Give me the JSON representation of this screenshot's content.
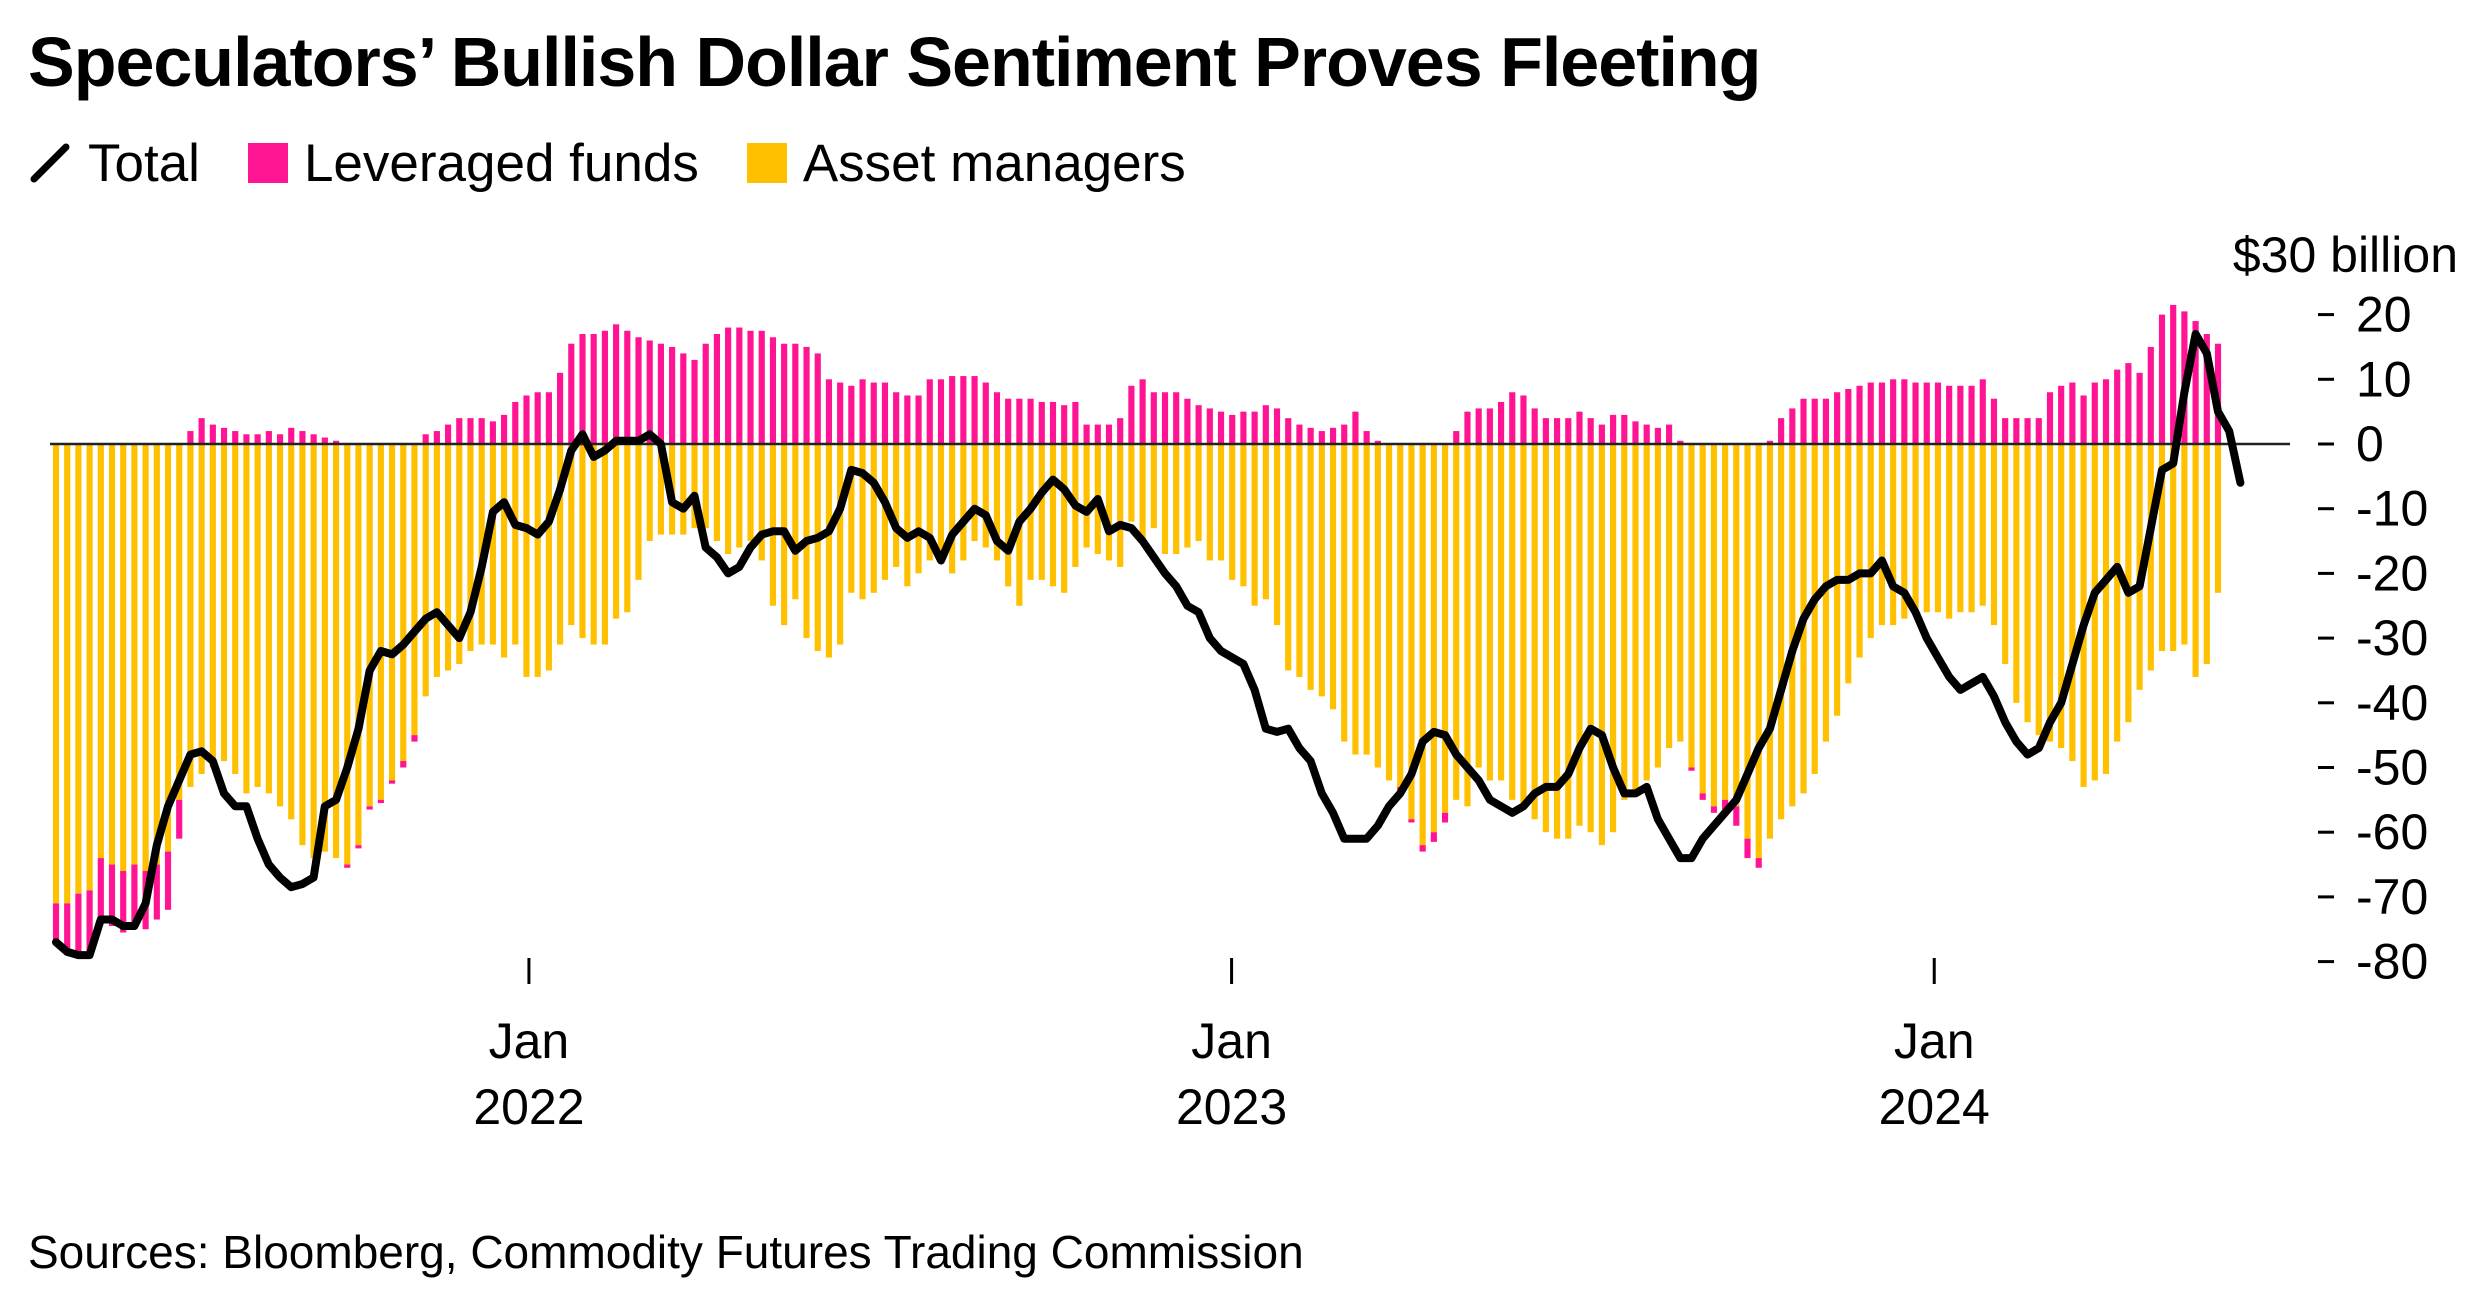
{
  "title": "Speculators’ Bullish Dollar Sentiment Proves Fleeting",
  "legend": {
    "total": "Total",
    "leveraged": "Leveraged funds",
    "asset": "Asset managers"
  },
  "colors": {
    "total": "#000000",
    "leveraged": "#ff1493",
    "asset": "#ffc000",
    "zero_line": "#222222"
  },
  "source": "Sources: Bloomberg, Commodity Futures Trading Commission",
  "chart_data": {
    "type": "bar",
    "stacked": true,
    "unit_label": "$30 billion",
    "y_ticks": [
      "20",
      "10",
      "0",
      "-10",
      "-20",
      "-30",
      "-40",
      "-50",
      "-60",
      "-70",
      "-80"
    ],
    "ylim": [
      -80,
      30
    ],
    "x_axis": {
      "start": "2021-05-04",
      "end": "2024-05-28",
      "ticks": [
        {
          "date": "2022-01-04",
          "month": "Jan",
          "year": "2022"
        },
        {
          "date": "2023-01-03",
          "month": "Jan",
          "year": "2023"
        },
        {
          "date": "2024-01-02",
          "month": "Jan",
          "year": "2024"
        }
      ]
    },
    "series": [
      {
        "name": "Leveraged funds",
        "values": [
          -6,
          -8,
          -9.5,
          -10,
          -10,
          -9.5,
          -9.5,
          -9.5,
          -9,
          -8.5,
          -9,
          -6,
          2,
          4,
          3,
          2.5,
          2,
          1.5,
          1.5,
          2,
          1.5,
          2.5,
          2,
          1.5,
          1,
          0.5,
          -0.5,
          -0.5,
          -0.5,
          -0.5,
          -0.5,
          -1,
          -1,
          1.5,
          2,
          3,
          4,
          4,
          4,
          3.5,
          4.5,
          6.5,
          7.5,
          8,
          8,
          11,
          15.5,
          17,
          17,
          17.5,
          18.5,
          17.5,
          16.5,
          16,
          15.5,
          15,
          14,
          13,
          15.5,
          17,
          18,
          18,
          17.5,
          17.5,
          16.5,
          15.5,
          15.5,
          15,
          14,
          10,
          9.5,
          9,
          10,
          9.5,
          9.5,
          8,
          7.5,
          7.5,
          10,
          10,
          10.5,
          10.5,
          10.5,
          9.5,
          8,
          7,
          7,
          7,
          6.5,
          6.5,
          6,
          6.5,
          3,
          3,
          3,
          4,
          9,
          10,
          8,
          8,
          8,
          7,
          6,
          5.5,
          5,
          4.5,
          5,
          5,
          6,
          5.5,
          4,
          3,
          2.5,
          2,
          2.5,
          3,
          5,
          2,
          0.5,
          0,
          -0.5,
          -0.5,
          -1,
          -1.5,
          -1.5,
          2,
          5,
          5.5,
          5.5,
          6.5,
          8,
          7.5,
          5.5,
          4,
          4,
          4,
          5,
          4,
          3,
          4.5,
          4.5,
          3.5,
          3,
          2.5,
          3,
          0.5,
          -0.5,
          -1,
          -1,
          -1.5,
          -3,
          -3,
          -1.5,
          0.5,
          4,
          5.5,
          7,
          7,
          7,
          8,
          8.5,
          9,
          9.5,
          9.5,
          10,
          10,
          9.5,
          9.5,
          9.5,
          9,
          9,
          9,
          10,
          7,
          4,
          4,
          4,
          4,
          8,
          9,
          9.5,
          7.5,
          9.5,
          10,
          11.5,
          12.5,
          11,
          15,
          20,
          21.5,
          20.5,
          19,
          17,
          15.5
        ]
      },
      {
        "name": "Asset managers",
        "values": [
          -71,
          -71,
          -69.5,
          -69,
          -64,
          -65,
          -66,
          -65,
          -66,
          -65,
          -63,
          -55,
          -53,
          -51,
          -50,
          -49,
          -51,
          -54,
          -53,
          -54,
          -56,
          -58,
          -62,
          -64,
          -63,
          -64,
          -65,
          -62,
          -56,
          -55,
          -52,
          -49,
          -45,
          -39,
          -36,
          -35,
          -34,
          -32,
          -31,
          -31,
          -33,
          -31,
          -36,
          -36,
          -35,
          -31,
          -28,
          -30,
          -31,
          -31,
          -27,
          -26,
          -21,
          -15,
          -14,
          -14,
          -14,
          -13,
          -13,
          -15,
          -17,
          -16,
          -15,
          -18,
          -25,
          -28,
          -24,
          -30,
          -32,
          -33,
          -31,
          -23,
          -24,
          -23,
          -21,
          -19,
          -22,
          -20,
          -18,
          -17,
          -20,
          -18,
          -15,
          -16,
          -18,
          -22,
          -25,
          -21,
          -21,
          -22,
          -23,
          -19,
          -16,
          -17,
          -18,
          -19,
          -12,
          -15,
          -13,
          -17,
          -17,
          -16,
          -15,
          -18,
          -18,
          -21,
          -22,
          -25,
          -24,
          -28,
          -35,
          -36,
          -38,
          -39,
          -41,
          -46,
          -48,
          -48,
          -50,
          -52,
          -53,
          -58,
          -62,
          -60,
          -57,
          -55,
          -56,
          -50,
          -52,
          -52,
          -55,
          -56,
          -58,
          -60,
          -61,
          -61,
          -59,
          -60,
          -62,
          -60,
          -55,
          -54,
          -52,
          -50,
          -47,
          -46,
          -50,
          -54,
          -56,
          -55,
          -56,
          -61,
          -64,
          -61,
          -58,
          -56,
          -54,
          -51,
          -46,
          -42,
          -37,
          -33,
          -30,
          -28,
          -28,
          -27,
          -26,
          -26,
          -26,
          -27,
          -26,
          -26,
          -25,
          -28,
          -34,
          -40,
          -43,
          -45,
          -46,
          -47,
          -49,
          -53,
          -52,
          -51,
          -46,
          -43,
          -38,
          -35,
          -32,
          -32,
          -31,
          -36,
          -34,
          -23,
          -21,
          -18,
          -13,
          -14,
          -20.5
        ]
      },
      {
        "name": "Total",
        "type": "line",
        "values": [
          -77,
          -78.5,
          -79,
          -79,
          -73.5,
          -73.5,
          -74.5,
          -74.5,
          -71,
          -62,
          -56,
          -52,
          -48,
          -47.5,
          -49,
          -54,
          -56,
          -56,
          -61,
          -65,
          -67,
          -68.5,
          -68,
          -67,
          -56,
          -55,
          -50,
          -44,
          -35,
          -32,
          -32.5,
          -31,
          -29,
          -27,
          -26,
          -28,
          -30,
          -26,
          -19,
          -10.5,
          -9,
          -12.5,
          -13,
          -14,
          -12,
          -7,
          -1,
          1.5,
          -2,
          -1,
          0.5,
          0.5,
          0.5,
          1.5,
          0,
          -9,
          -10,
          -8,
          -16,
          -17.5,
          -20,
          -19,
          -16,
          -14,
          -13.5,
          -13.5,
          -16.5,
          -15,
          -14.5,
          -13.5,
          -10,
          -4,
          -4.5,
          -6,
          -9,
          -13,
          -14.5,
          -13.5,
          -14.5,
          -18,
          -14,
          -12,
          -10,
          -11,
          -15,
          -16.5,
          -12,
          -10,
          -7.5,
          -5.5,
          -7,
          -9.5,
          -10.5,
          -8.5,
          -13.5,
          -12.5,
          -13,
          -15,
          -17.5,
          -20,
          -22,
          -25,
          -26,
          -30,
          -32,
          -33,
          -34,
          -38,
          -44,
          -44.5,
          -44,
          -47,
          -49,
          -54,
          -57,
          -61,
          -61,
          -61,
          -59,
          -56,
          -54,
          -51,
          -46,
          -44.5,
          -45,
          -48,
          -50,
          -52,
          -55,
          -56,
          -57,
          -56,
          -54,
          -53,
          -53,
          -51,
          -47,
          -44,
          -45,
          -50,
          -54,
          -54,
          -53,
          -58,
          -61,
          -64,
          -64,
          -61,
          -59,
          -57,
          -55,
          -51,
          -47,
          -44,
          -38,
          -32,
          -27,
          -24,
          -22,
          -21,
          -21,
          -20,
          -20,
          -18,
          -22,
          -23,
          -26,
          -30,
          -33,
          -36,
          -38,
          -37,
          -36,
          -39,
          -43,
          -46,
          -48,
          -47,
          -43,
          -40,
          -34,
          -28,
          -23,
          -21,
          -19,
          -23,
          -22,
          -13,
          -4,
          -3,
          8,
          17,
          14,
          5,
          2,
          -6
        ]
      }
    ]
  }
}
